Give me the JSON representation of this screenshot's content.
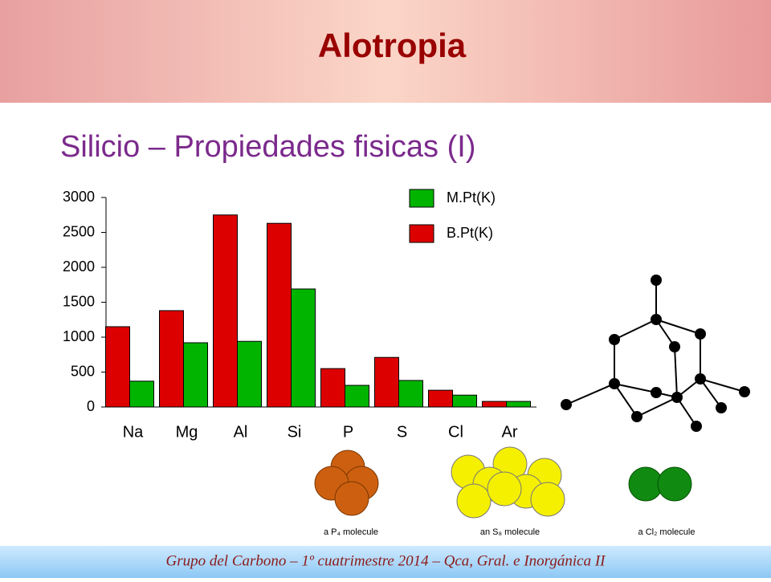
{
  "header": {
    "title": "Alotropia"
  },
  "subtitle": "Silicio – Propiedades fisicas (I)",
  "chart_data": {
    "type": "bar",
    "categories": [
      "Na",
      "Mg",
      "Al",
      "Si",
      "P",
      "S",
      "Cl",
      "Ar"
    ],
    "series": [
      {
        "name": "M.Pt(K)",
        "color": "#00b400",
        "values": [
          370,
          920,
          940,
          1690,
          310,
          380,
          170,
          80
        ]
      },
      {
        "name": "B.Pt(K)",
        "color": "#dd0000",
        "values": [
          1150,
          1380,
          2750,
          2630,
          550,
          710,
          240,
          80
        ]
      }
    ],
    "ylim": [
      0,
      3000
    ],
    "yticks": [
      0,
      500,
      1000,
      1500,
      2000,
      2500,
      3000
    ],
    "grid": false
  },
  "molecules": [
    "a P₄ molecule",
    "an S₈ molecule",
    "a Cl₂ molecule"
  ],
  "footer": "Grupo del Carbono – 1º cuatrimestre 2014 – Qca, Gral. e Inorgánica II"
}
